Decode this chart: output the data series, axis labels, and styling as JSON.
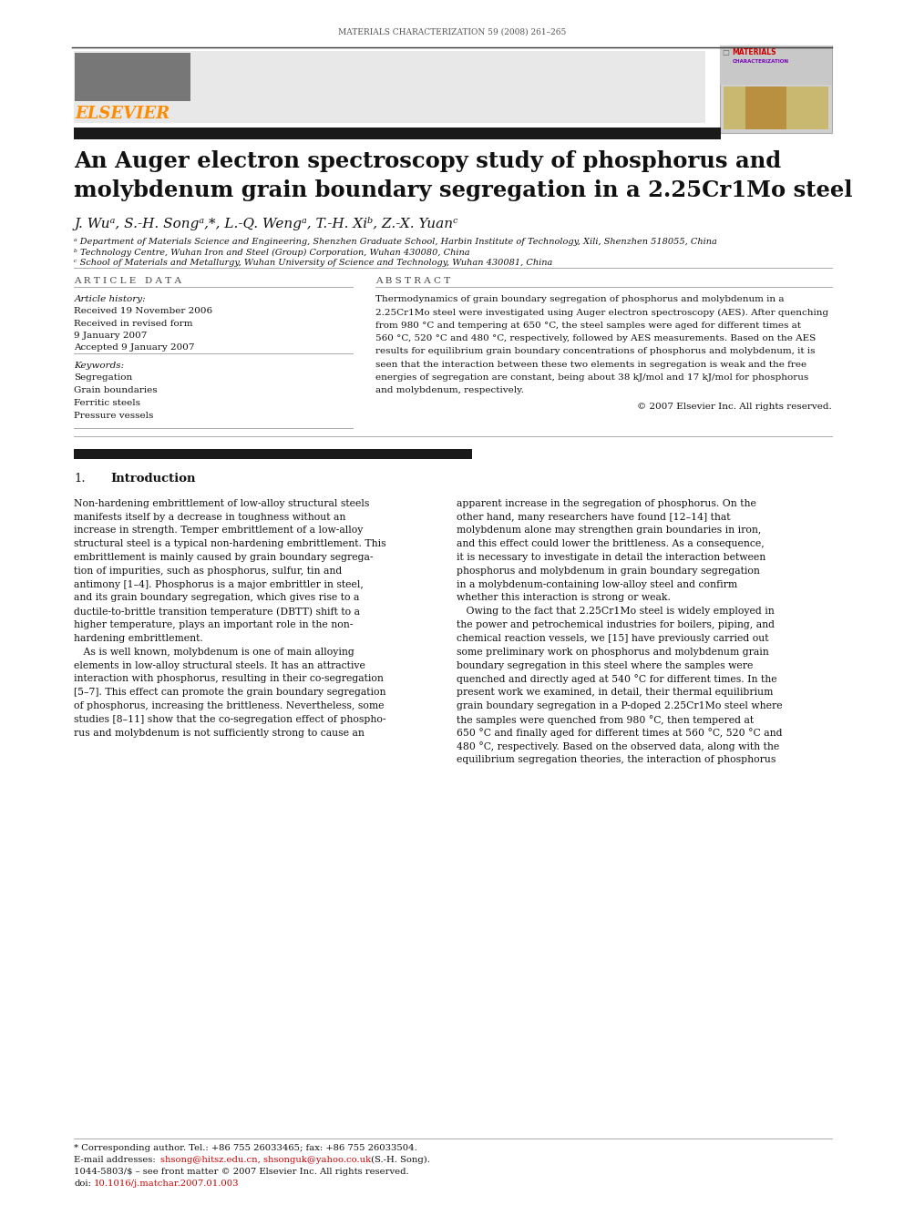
{
  "journal_header": "MATERIALS CHARACTERIZATION 59 (2008) 261–265",
  "title_line1": "An Auger electron spectroscopy study of phosphorus and",
  "title_line2": "molybdenum grain boundary segregation in a 2.25Cr1Mo steel",
  "authors": "J. Wuᵃ, S.-H. Songᵃ,*, L.-Q. Wengᵃ, T.-H. Xiᵇ, Z.-X. Yuanᶜ",
  "affil_a": "ᵃ Department of Materials Science and Engineering, Shenzhen Graduate School, Harbin Institute of Technology, Xili, Shenzhen 518055, China",
  "affil_b": "ᵇ Technology Centre, Wuhan Iron and Steel (Group) Corporation, Wuhan 430080, China",
  "affil_c": "ᶜ School of Materials and Metallurgy, Wuhan University of Science and Technology, Wuhan 430081, China",
  "article_data_header": "A R T I C L E   D A T A",
  "article_history_label": "Article history:",
  "received1": "Received 19 November 2006",
  "received_revised": "Received in revised form",
  "date_revised": "9 January 2007",
  "accepted": "Accepted 9 January 2007",
  "keywords_label": "Keywords:",
  "keywords": [
    "Segregation",
    "Grain boundaries",
    "Ferritic steels",
    "Pressure vessels"
  ],
  "abstract_header": "A B S T R A C T",
  "abstract_text": "Thermodynamics of grain boundary segregation of phosphorus and molybdenum in a\n2.25Cr1Mo steel were investigated using Auger electron spectroscopy (AES). After quenching\nfrom 980 °C and tempering at 650 °C, the steel samples were aged for different times at\n560 °C, 520 °C and 480 °C, respectively, followed by AES measurements. Based on the AES\nresults for equilibrium grain boundary concentrations of phosphorus and molybdenum, it is\nseen that the interaction between these two elements in segregation is weak and the free\nenergies of segregation are constant, being about 38 kJ/mol and 17 kJ/mol for phosphorus\nand molybdenum, respectively.",
  "copyright": "© 2007 Elsevier Inc. All rights reserved.",
  "intro_section_num": "1.",
  "intro_section_title": "Introduction",
  "intro_col1": "Non-hardening embrittlement of low-alloy structural steels\nmanifests itself by a decrease in toughness without an\nincrease in strength. Temper embrittlement of a low-alloy\nstructural steel is a typical non-hardening embrittlement. This\nembrittlement is mainly caused by grain boundary segrega-\ntion of impurities, such as phosphorus, sulfur, tin and\nantimony [1–4]. Phosphorus is a major embrittler in steel,\nand its grain boundary segregation, which gives rise to a\nductile-to-brittle transition temperature (DBTT) shift to a\nhigher temperature, plays an important role in the non-\nhardening embrittlement.\n   As is well known, molybdenum is one of main alloying\nelements in low-alloy structural steels. It has an attractive\ninteraction with phosphorus, resulting in their co-segregation\n[5–7]. This effect can promote the grain boundary segregation\nof phosphorus, increasing the brittleness. Nevertheless, some\nstudies [8–11] show that the co-segregation effect of phospho-\nrus and molybdenum is not sufficiently strong to cause an",
  "intro_col2": "apparent increase in the segregation of phosphorus. On the\nother hand, many researchers have found [12–14] that\nmolybdenum alone may strengthen grain boundaries in iron,\nand this effect could lower the brittleness. As a consequence,\nit is necessary to investigate in detail the interaction between\nphosphorus and molybdenum in grain boundary segregation\nin a molybdenum-containing low-alloy steel and confirm\nwhether this interaction is strong or weak.\n   Owing to the fact that 2.25Cr1Mo steel is widely employed in\nthe power and petrochemical industries for boilers, piping, and\nchemical reaction vessels, we [15] have previously carried out\nsome preliminary work on phosphorus and molybdenum grain\nboundary segregation in this steel where the samples were\nquenched and directly aged at 540 °C for different times. In the\npresent work we examined, in detail, their thermal equilibrium\ngrain boundary segregation in a P-doped 2.25Cr1Mo steel where\nthe samples were quenched from 980 °C, then tempered at\n650 °C and finally aged for different times at 560 °C, 520 °C and\n480 °C, respectively. Based on the observed data, along with the\nequilibrium segregation theories, the interaction of phosphorus",
  "footnote_corresponding": "* Corresponding author. Tel.: +86 755 26033465; fax: +86 755 26033504.",
  "footnote_email_prefix": "E-mail addresses: ",
  "footnote_email_links": "shsong@hitsz.edu.cn, shsonguk@yahoo.co.uk",
  "footnote_email_suffix": " (S.-H. Song).",
  "footnote_issn": "1044-5803/$ – see front matter © 2007 Elsevier Inc. All rights reserved.",
  "footnote_doi_prefix": "doi:",
  "footnote_doi_link": "10.1016/j.matchar.2007.01.003",
  "doi_color": "#cc0000",
  "elsevier_color": "#ff8c00",
  "bg_color": "#ffffff",
  "header_bar_color": "#1a1a1a",
  "left_panel_bg": "#e8e8e8"
}
